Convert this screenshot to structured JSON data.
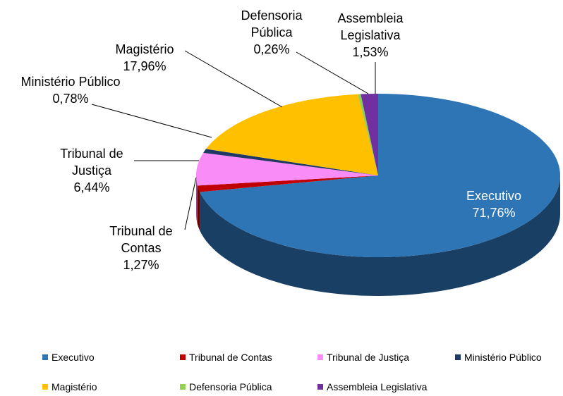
{
  "chart_data": {
    "type": "pie3d",
    "categories": [
      "Executivo",
      "Tribunal de Contas",
      "Tribunal de Justiça",
      "Ministério Público",
      "Magistério",
      "Defensoria Pública",
      "Assembleia Legislativa"
    ],
    "values": [
      71.76,
      1.27,
      6.44,
      0.78,
      17.96,
      0.26,
      1.53
    ],
    "value_labels": [
      "71,76%",
      "1,27%",
      "6,44%",
      "0,78%",
      "17,96%",
      "0,26%",
      "1,53%"
    ],
    "colors": [
      "#2e75b6",
      "#c00000",
      "#fa8cf8",
      "#1f3864",
      "#ffc000",
      "#92d050",
      "#7030a0"
    ],
    "legend": "bottom"
  }
}
